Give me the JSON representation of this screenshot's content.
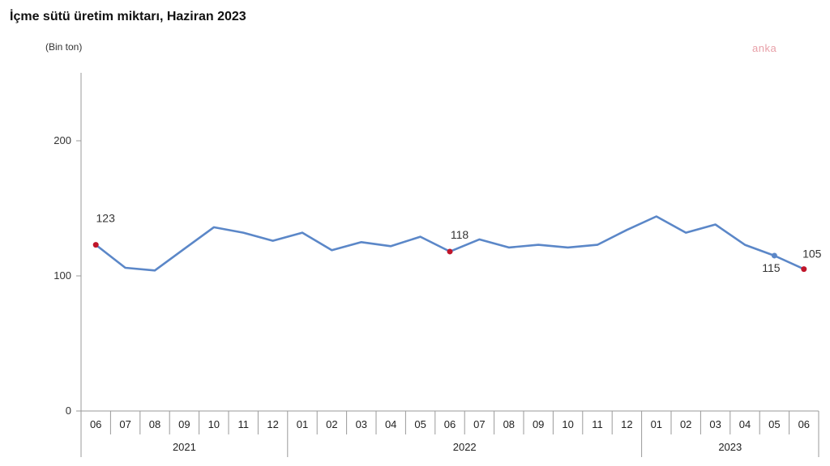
{
  "title": "İçme sütü üretim miktarı, Haziran 2023",
  "watermark": "anka",
  "chart_data": {
    "type": "line",
    "title": "İçme sütü üretim miktarı, Haziran 2023",
    "unit_label": "(Bin  ton)",
    "xlabel": "",
    "ylabel": "",
    "ylim": [
      0,
      250
    ],
    "yticks": [
      0,
      100,
      200
    ],
    "grid": false,
    "categories": [
      "06",
      "07",
      "08",
      "09",
      "10",
      "11",
      "12",
      "01",
      "02",
      "03",
      "04",
      "05",
      "06",
      "07",
      "08",
      "09",
      "10",
      "11",
      "12",
      "01",
      "02",
      "03",
      "04",
      "05",
      "06"
    ],
    "year_groups": [
      {
        "label": "2021",
        "count": 7
      },
      {
        "label": "2022",
        "count": 12
      },
      {
        "label": "2023",
        "count": 6
      }
    ],
    "series": [
      {
        "color": "#5b87c8",
        "values": [
          123,
          106,
          104,
          120,
          136,
          132,
          126,
          132,
          119,
          125,
          122,
          129,
          118,
          127,
          121,
          123,
          121,
          123,
          134,
          144,
          132,
          138,
          123,
          115,
          105
        ]
      }
    ],
    "highlight_color": "#c0152a",
    "data_labels": [
      {
        "index": 0,
        "text": "123",
        "color": "#c0152a"
      },
      {
        "index": 12,
        "text": "118",
        "color": "#c0152a"
      },
      {
        "index": 23,
        "text": "115",
        "color": "#5b87c8"
      },
      {
        "index": 24,
        "text": "105",
        "color": "#c0152a"
      }
    ]
  }
}
